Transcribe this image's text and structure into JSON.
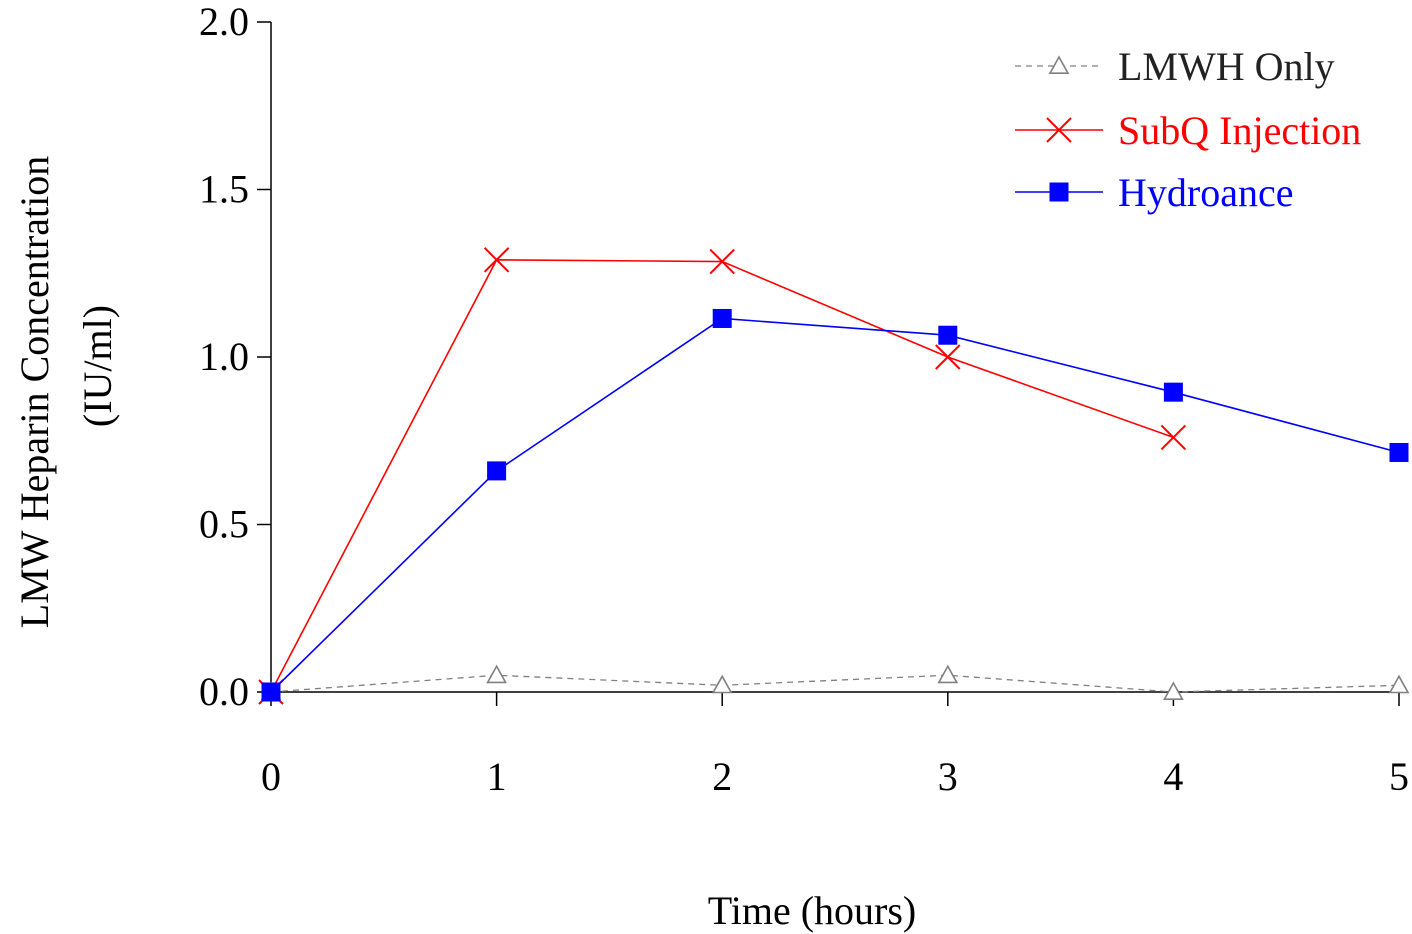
{
  "chart_data": {
    "type": "line",
    "xlabel": "Time (hours)",
    "ylabel_line1": "LMW Heparin Concentration",
    "ylabel_line2": "(IU/ml)",
    "xlim": [
      0,
      5
    ],
    "ylim": [
      0,
      2.0
    ],
    "x_ticks": [
      0,
      1,
      2,
      3,
      4,
      5
    ],
    "x_tick_labels": [
      "0",
      "1",
      "2",
      "3",
      "4",
      "5"
    ],
    "y_ticks": [
      0.0,
      0.5,
      1.0,
      1.5,
      2.0
    ],
    "y_tick_labels": [
      "0.0",
      "0.5",
      "1.0",
      "1.5",
      "2.0"
    ],
    "grid": false,
    "legend_position": "top-right",
    "series": [
      {
        "name": "LMWH Only",
        "color": "#808080",
        "marker": "open-triangle",
        "line_style": "dashed",
        "x": [
          0,
          1,
          2,
          3,
          4,
          5
        ],
        "y": [
          0.0,
          0.05,
          0.02,
          0.05,
          0.0,
          0.02
        ]
      },
      {
        "name": "SubQ Injection",
        "color": "#ff0000",
        "marker": "x-cross",
        "line_style": "solid",
        "x": [
          0,
          1,
          2,
          3,
          4
        ],
        "y": [
          0.0,
          1.29,
          1.285,
          1.0,
          0.76
        ]
      },
      {
        "name": "Hydroance",
        "color": "#0000ff",
        "marker": "filled-square",
        "line_style": "solid",
        "x": [
          0,
          1,
          2,
          3,
          4,
          5
        ],
        "y": [
          0.0,
          0.66,
          1.115,
          1.065,
          0.895,
          0.715
        ]
      }
    ]
  }
}
